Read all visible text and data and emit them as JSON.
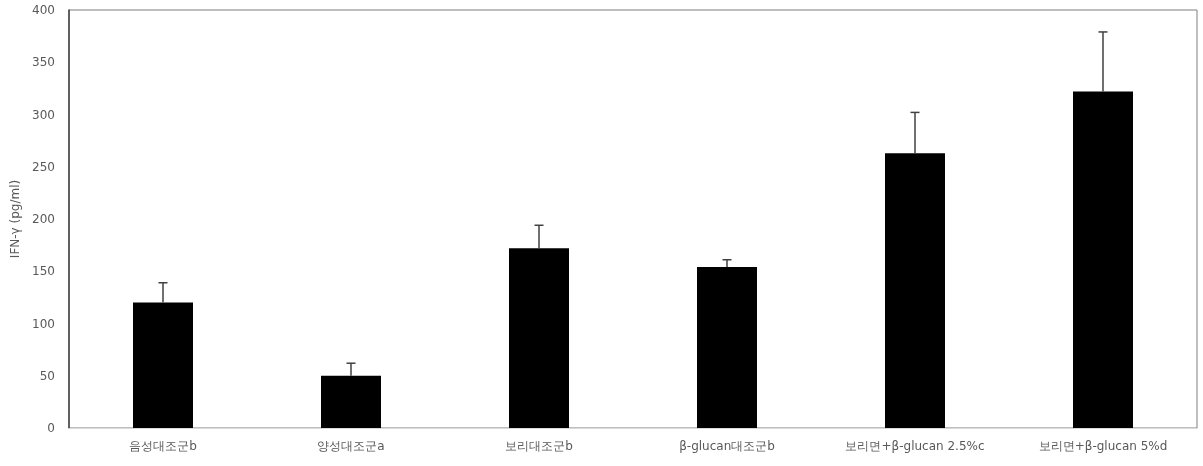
{
  "chart_data": {
    "type": "bar",
    "ylabel": "IFN-γ (pg/ml)",
    "categories": [
      "음성대조군b",
      "양성대조군a",
      "보리대조군b",
      "β-glucan대조군b",
      "보리면+β-glucan 2.5%c",
      "보리면+β-glucan 5%d"
    ],
    "values": [
      120,
      50,
      172,
      154,
      263,
      322
    ],
    "errors": [
      [
        120,
        139
      ],
      [
        50,
        62
      ],
      [
        172,
        194
      ],
      [
        154,
        161
      ],
      [
        263,
        302
      ],
      [
        322,
        379
      ]
    ],
    "color": "#000000",
    "ylim": [
      0,
      400
    ],
    "yticks": [
      0,
      50,
      100,
      150,
      200,
      250,
      300,
      350,
      400
    ],
    "grid": false
  }
}
